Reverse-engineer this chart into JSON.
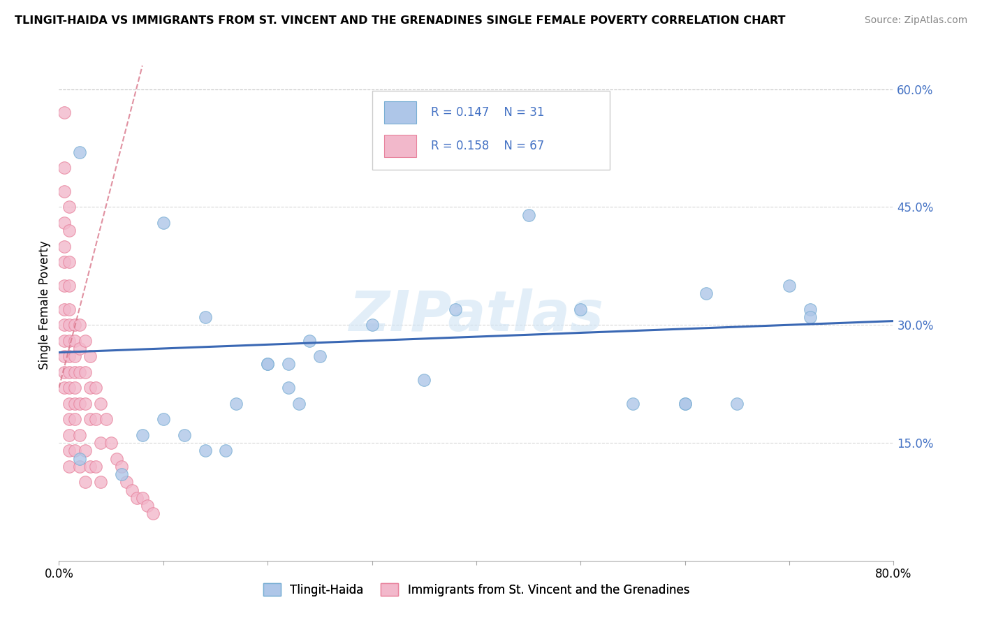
{
  "title": "TLINGIT-HAIDA VS IMMIGRANTS FROM ST. VINCENT AND THE GRENADINES SINGLE FEMALE POVERTY CORRELATION CHART",
  "source": "Source: ZipAtlas.com",
  "ylabel": "Single Female Poverty",
  "xlim": [
    0.0,
    0.8
  ],
  "ylim": [
    0.0,
    0.65
  ],
  "ytick_positions": [
    0.15,
    0.3,
    0.45,
    0.6
  ],
  "ytick_labels": [
    "15.0%",
    "30.0%",
    "45.0%",
    "60.0%"
  ],
  "blue_color": "#aec6e8",
  "pink_color": "#f2b8cb",
  "blue_edge": "#7aafd4",
  "pink_edge": "#e8849e",
  "trend_blue": "#3a68b4",
  "trend_pink": "#d9768a",
  "legend_R_blue": "0.147",
  "legend_N_blue": "31",
  "legend_R_pink": "0.158",
  "legend_N_pink": "67",
  "legend_label_blue": "Tlingit-Haida",
  "legend_label_pink": "Immigrants from St. Vincent and the Grenadines",
  "watermark": "ZIPatlas",
  "blue_x": [
    0.02,
    0.1,
    0.14,
    0.17,
    0.2,
    0.22,
    0.22,
    0.23,
    0.24,
    0.25,
    0.3,
    0.35,
    0.38,
    0.45,
    0.5,
    0.55,
    0.6,
    0.62,
    0.65,
    0.7,
    0.72,
    0.02,
    0.06,
    0.08,
    0.1,
    0.12,
    0.14,
    0.16,
    0.2,
    0.6,
    0.72
  ],
  "blue_y": [
    0.52,
    0.43,
    0.31,
    0.2,
    0.25,
    0.25,
    0.22,
    0.2,
    0.28,
    0.26,
    0.3,
    0.23,
    0.32,
    0.44,
    0.32,
    0.2,
    0.2,
    0.34,
    0.2,
    0.35,
    0.32,
    0.13,
    0.11,
    0.16,
    0.18,
    0.16,
    0.14,
    0.14,
    0.25,
    0.2,
    0.31
  ],
  "pink_x": [
    0.005,
    0.005,
    0.005,
    0.005,
    0.005,
    0.005,
    0.005,
    0.005,
    0.005,
    0.005,
    0.005,
    0.005,
    0.005,
    0.01,
    0.01,
    0.01,
    0.01,
    0.01,
    0.01,
    0.01,
    0.01,
    0.01,
    0.01,
    0.01,
    0.01,
    0.01,
    0.01,
    0.01,
    0.015,
    0.015,
    0.015,
    0.015,
    0.015,
    0.015,
    0.015,
    0.015,
    0.02,
    0.02,
    0.02,
    0.02,
    0.02,
    0.02,
    0.025,
    0.025,
    0.025,
    0.025,
    0.025,
    0.03,
    0.03,
    0.03,
    0.03,
    0.035,
    0.035,
    0.035,
    0.04,
    0.04,
    0.04,
    0.045,
    0.05,
    0.055,
    0.06,
    0.065,
    0.07,
    0.075,
    0.08,
    0.085,
    0.09
  ],
  "pink_y": [
    0.57,
    0.5,
    0.47,
    0.43,
    0.4,
    0.38,
    0.35,
    0.32,
    0.3,
    0.28,
    0.26,
    0.24,
    0.22,
    0.45,
    0.42,
    0.38,
    0.35,
    0.32,
    0.3,
    0.28,
    0.26,
    0.24,
    0.22,
    0.2,
    0.18,
    0.16,
    0.14,
    0.12,
    0.3,
    0.28,
    0.26,
    0.24,
    0.22,
    0.2,
    0.18,
    0.14,
    0.3,
    0.27,
    0.24,
    0.2,
    0.16,
    0.12,
    0.28,
    0.24,
    0.2,
    0.14,
    0.1,
    0.26,
    0.22,
    0.18,
    0.12,
    0.22,
    0.18,
    0.12,
    0.2,
    0.15,
    0.1,
    0.18,
    0.15,
    0.13,
    0.12,
    0.1,
    0.09,
    0.08,
    0.08,
    0.07,
    0.06
  ]
}
